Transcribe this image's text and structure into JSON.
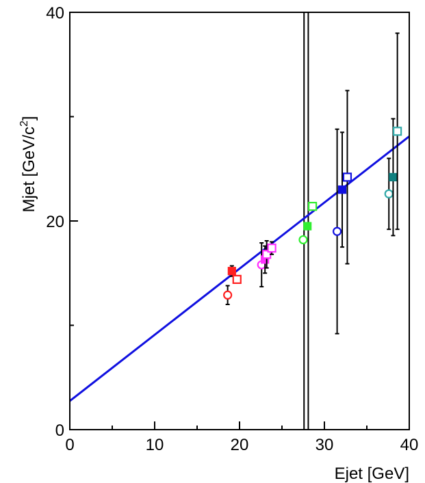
{
  "chart_data": {
    "type": "scatter",
    "title": "",
    "xlabel": "Ejet [GeV]",
    "ylabel_main": "Mjet [GeV/c",
    "ylabel_sup": "2",
    "ylabel_end": "]",
    "xlim": [
      0,
      40
    ],
    "ylim": [
      0,
      40
    ],
    "xticks": [
      "0",
      "10",
      "20",
      "30",
      "40"
    ],
    "yticks": [
      "0",
      "20",
      "40"
    ],
    "grid": false,
    "fit_line": {
      "intercept": 2.75,
      "slope": 0.634,
      "color": "#1010e0"
    },
    "vertical_lines": [
      27.6,
      28.1
    ],
    "points": [
      {
        "x": 18.6,
        "y": 12.9,
        "err": 0.9,
        "marker": "circle",
        "filled": false,
        "color": "#ff2020"
      },
      {
        "x": 19.1,
        "y": 15.2,
        "err": 0.5,
        "marker": "square",
        "filled": true,
        "color": "#ff2020"
      },
      {
        "x": 19.7,
        "y": 14.4,
        "err": 0.3,
        "marker": "square",
        "filled": false,
        "color": "#ff2020"
      },
      {
        "x": 22.6,
        "y": 15.8,
        "err": 2.1,
        "marker": "circle",
        "filled": false,
        "color": "#ff30ff"
      },
      {
        "x": 23.0,
        "y": 16.3,
        "err": 1.3,
        "marker": "square",
        "filled": true,
        "color": "#ff30ff"
      },
      {
        "x": 23.2,
        "y": 16.8,
        "err": 1.3,
        "marker": "square",
        "filled": false,
        "color": "#ff30ff"
      },
      {
        "x": 23.8,
        "y": 17.4,
        "err": 0.6,
        "marker": "square",
        "filled": false,
        "color": "#ff30ff"
      },
      {
        "x": 27.5,
        "y": 18.2,
        "err": 0.0,
        "marker": "circle",
        "filled": false,
        "color": "#30ee30"
      },
      {
        "x": 28.0,
        "y": 19.5,
        "err": 0.0,
        "marker": "square",
        "filled": true,
        "color": "#30ee30"
      },
      {
        "x": 28.6,
        "y": 21.4,
        "err": 0.0,
        "marker": "square",
        "filled": false,
        "color": "#30ee30"
      },
      {
        "x": 31.5,
        "y": 19.0,
        "err": 9.8,
        "marker": "circle",
        "filled": false,
        "color": "#1010e0"
      },
      {
        "x": 32.1,
        "y": 23.0,
        "err": 5.5,
        "marker": "square",
        "filled": true,
        "color": "#1010e0"
      },
      {
        "x": 32.7,
        "y": 24.2,
        "err": 8.3,
        "marker": "square",
        "filled": false,
        "color": "#1010e0"
      },
      {
        "x": 37.6,
        "y": 22.6,
        "err": 3.4,
        "marker": "circle",
        "filled": false,
        "color": "#30a8a8"
      },
      {
        "x": 38.1,
        "y": 24.2,
        "err": 5.6,
        "marker": "square",
        "filled": true,
        "color": "#108080"
      },
      {
        "x": 38.6,
        "y": 28.6,
        "err": 9.4,
        "marker": "square",
        "filled": false,
        "color": "#30a8a8"
      }
    ]
  }
}
